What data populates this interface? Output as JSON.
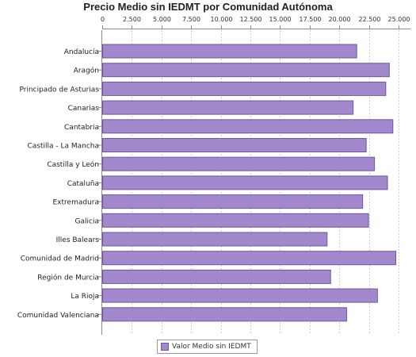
{
  "chart_data": {
    "type": "bar",
    "orientation": "horizontal",
    "title": "Precio Medio sin IEDMT por Comunidad Autónoma",
    "xlim": [
      0,
      26000
    ],
    "x_ticks": [
      0,
      2500,
      5000,
      7500,
      10000,
      12500,
      15000,
      17500,
      20000,
      22500,
      25000
    ],
    "x_tick_labels": [
      "0",
      "2.500",
      "5.000",
      "7.500",
      "10.000",
      "12.500",
      "15.000",
      "17.500",
      "20.000",
      "22.500",
      "25.000"
    ],
    "x_axis_position": "top",
    "grid": true,
    "legend_position": "bottom",
    "bar_color": "#a388cd",
    "bar_edge_color": "#6b5a96",
    "categories": [
      "Andalucía",
      "Aragón",
      "Principado de Asturias",
      "Canarias",
      "Cantabria",
      "Castilla - La Mancha",
      "Castilla y León",
      "Cataluña",
      "Extremadura",
      "Galicia",
      "Illes Balears",
      "Comunidad de Madrid",
      "Región de Murcia",
      "La Rioja",
      "Comunidad Valenciana"
    ],
    "series": [
      {
        "name": "Valor Medio sin IEDMT",
        "values": [
          21500,
          24250,
          23950,
          21200,
          24550,
          22300,
          23000,
          24100,
          22000,
          22500,
          19000,
          24800,
          19300,
          23250,
          20650
        ]
      }
    ]
  }
}
